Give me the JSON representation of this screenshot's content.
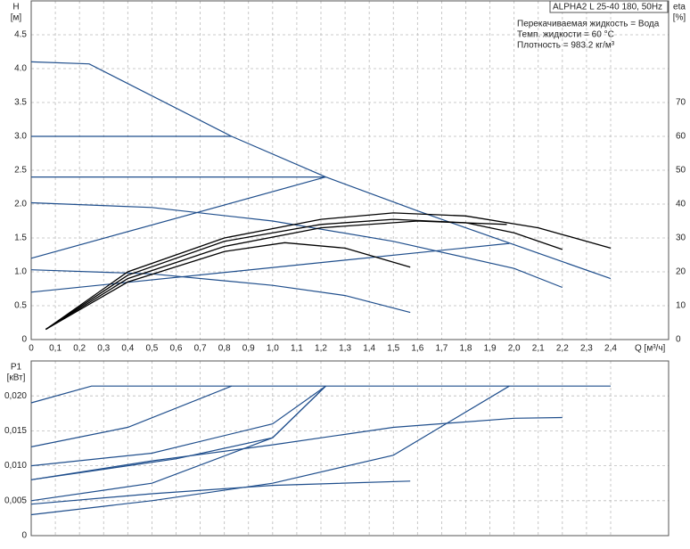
{
  "chart_data": [
    {
      "type": "line",
      "info_title": "ALPHA2 L 25-40 180, 50Hz",
      "info_lines": [
        "Перекачиваемая жидкость = Вода",
        "Темп. жидкости = 60 °C",
        "Плотность = 983.2 кг/м³"
      ],
      "y_label": "H",
      "y_unit": "[м]",
      "y2_label": "eta",
      "y2_unit": "[%]",
      "x_label": "Q [м³/ч]",
      "xlim": [
        0,
        2.64
      ],
      "ylim": [
        0,
        5
      ],
      "y2lim": [
        0,
        100
      ],
      "grid": true,
      "xticks": [
        0,
        {
          "value": 0.1,
          "label": "0,1"
        },
        {
          "value": 0.2,
          "label": "0,2"
        },
        {
          "value": 0.3,
          "label": "0,3"
        },
        {
          "value": 0.4,
          "label": "0,4"
        },
        {
          "value": 0.5,
          "label": "0,5"
        },
        {
          "value": 0.6,
          "label": "0,6"
        },
        {
          "value": 0.7,
          "label": "0,7"
        },
        {
          "value": 0.8,
          "label": "0,8"
        },
        {
          "value": 0.9,
          "label": "0,9"
        },
        {
          "value": 1,
          "label": "1,0"
        },
        {
          "value": 1.1,
          "label": "1,1"
        },
        {
          "value": 1.2,
          "label": "1,2"
        },
        {
          "value": 1.3,
          "label": "1,3"
        },
        {
          "value": 1.4,
          "label": "1,4"
        },
        {
          "value": 1.5,
          "label": "1,5"
        },
        {
          "value": 1.6,
          "label": "1,6"
        },
        {
          "value": 1.7,
          "label": "1,7"
        },
        {
          "value": 1.8,
          "label": "1,8"
        },
        {
          "value": 1.9,
          "label": "1,9"
        },
        {
          "value": 2,
          "label": "2,0"
        },
        {
          "value": 2.1,
          "label": "2,1"
        },
        {
          "value": 2.2,
          "label": "2,2"
        },
        {
          "value": 2.3,
          "label": "2,3"
        },
        {
          "value": 2.4,
          "label": "2,4"
        }
      ],
      "yticks": [
        0,
        0.5,
        {
          "value": 1,
          "label": "1.0"
        },
        1.5,
        {
          "value": 2,
          "label": "2.0"
        },
        2.5,
        {
          "value": 3,
          "label": "3.0"
        },
        3.5,
        {
          "value": 4,
          "label": "4.0"
        },
        4.5
      ],
      "y2ticks": [
        0,
        10,
        20,
        30,
        40,
        50,
        60,
        70
      ],
      "series": [
        {
          "color": "#1f4e8c",
          "x": [
            0,
            0.24,
            0.83,
            1.22,
            1.6,
            2.0,
            2.4
          ],
          "values": [
            4.1,
            4.07,
            3.0,
            2.4,
            1.9,
            1.4,
            0.9
          ]
        },
        {
          "color": "#1f4e8c",
          "x": [
            0,
            0.83
          ],
          "values": [
            3.0,
            3.0
          ]
        },
        {
          "color": "#1f4e8c",
          "x": [
            0,
            1.22
          ],
          "values": [
            2.4,
            2.4
          ]
        },
        {
          "color": "#1f4e8c",
          "x": [
            0,
            1.22
          ],
          "values": [
            1.2,
            2.4
          ]
        },
        {
          "color": "#1f4e8c",
          "x": [
            0,
            1.98
          ],
          "values": [
            0.7,
            1.42
          ]
        },
        {
          "color": "#1f4e8c",
          "x": [
            0,
            0.5,
            1.0,
            1.5,
            2.0,
            2.2
          ],
          "values": [
            2.02,
            1.95,
            1.75,
            1.45,
            1.05,
            0.77
          ]
        },
        {
          "color": "#1f4e8c",
          "x": [
            0,
            0.5,
            1.0,
            1.3,
            1.57
          ],
          "values": [
            1.03,
            0.97,
            0.8,
            0.65,
            0.4
          ]
        },
        {
          "color": "#000000",
          "axis": "y2",
          "x": [
            0.06,
            0.4,
            0.8,
            1.2,
            1.5,
            1.8,
            2.1,
            2.4
          ],
          "values": [
            3,
            20,
            30,
            35.5,
            37.4,
            36.5,
            33,
            27
          ]
        },
        {
          "color": "#000000",
          "axis": "y2",
          "x": [
            0.06,
            0.4,
            0.8,
            1.2,
            1.5,
            1.8,
            2.0,
            2.2
          ],
          "values": [
            3,
            19,
            29,
            34,
            35.5,
            34.5,
            31.5,
            26.6
          ]
        },
        {
          "color": "#000000",
          "axis": "y2",
          "x": [
            0.06,
            0.4,
            0.8,
            1.2,
            1.6,
            1.97
          ],
          "values": [
            3,
            18,
            27.5,
            33,
            35,
            34
          ]
        },
        {
          "color": "#000000",
          "axis": "y2",
          "x": [
            0.06,
            0.4,
            0.8,
            1.05,
            1.3,
            1.57
          ],
          "values": [
            3,
            17,
            26,
            28.6,
            27,
            21.4
          ]
        }
      ]
    },
    {
      "type": "line",
      "y_label": "P1",
      "y_unit": "[кВт]",
      "xlim": [
        0,
        2.64
      ],
      "ylim": [
        0,
        0.025
      ],
      "grid": true,
      "xticks": [
        0,
        0.1,
        0.2,
        0.3,
        0.4,
        0.5,
        0.6,
        0.7,
        0.8,
        0.9,
        1,
        1.1,
        1.2,
        1.3,
        1.4,
        1.5,
        1.6,
        1.7,
        1.8,
        1.9,
        2,
        2.1,
        2.2,
        2.3,
        2.4
      ],
      "yticks": [
        0,
        {
          "value": 0.005,
          "label": "0,005"
        },
        {
          "value": 0.01,
          "label": "0,010"
        },
        {
          "value": 0.015,
          "label": "0,015"
        },
        {
          "value": 0.02,
          "label": "0,020"
        }
      ],
      "series": [
        {
          "color": "#1f4e8c",
          "x": [
            0,
            0.25,
            2.4
          ],
          "values": [
            0.019,
            0.0214,
            0.0214
          ]
        },
        {
          "color": "#1f4e8c",
          "x": [
            0,
            0.4,
            0.83
          ],
          "values": [
            0.0127,
            0.0155,
            0.0214
          ]
        },
        {
          "color": "#1f4e8c",
          "x": [
            0,
            0.5,
            1.0,
            1.22
          ],
          "values": [
            0.01,
            0.0118,
            0.016,
            0.0214
          ]
        },
        {
          "color": "#1f4e8c",
          "x": [
            0,
            0.6,
            1.0,
            1.22
          ],
          "values": [
            0.008,
            0.011,
            0.014,
            0.0214
          ]
        },
        {
          "color": "#1f4e8c",
          "x": [
            0,
            0.5,
            1.0,
            1.22
          ],
          "values": [
            0.005,
            0.0075,
            0.014,
            0.0214
          ]
        },
        {
          "color": "#1f4e8c",
          "x": [
            0,
            0.5,
            1.0,
            1.5,
            1.98
          ],
          "values": [
            0.003,
            0.005,
            0.0075,
            0.0115,
            0.0214
          ]
        },
        {
          "color": "#1f4e8c",
          "x": [
            0,
            0.5,
            1.0,
            1.57
          ],
          "values": [
            0.0045,
            0.006,
            0.0072,
            0.0078
          ]
        },
        {
          "color": "#1f4e8c",
          "x": [
            0,
            0.5,
            1.0,
            1.5,
            2.0,
            2.2
          ],
          "values": [
            0.008,
            0.0107,
            0.013,
            0.0155,
            0.0168,
            0.0169
          ]
        }
      ]
    }
  ]
}
